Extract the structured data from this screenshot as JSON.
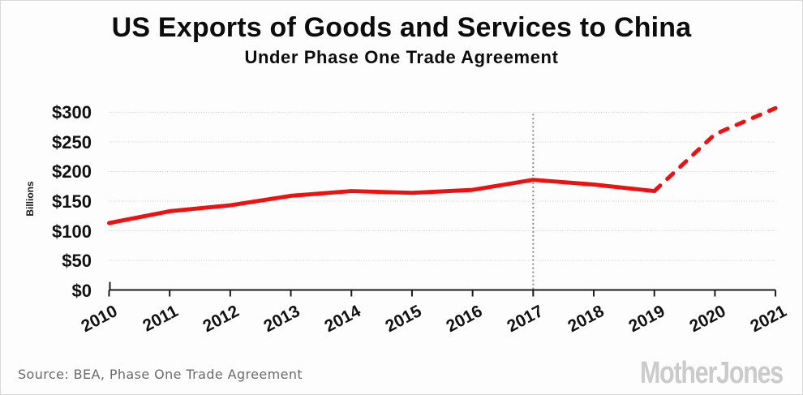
{
  "header": {
    "title": "US Exports of Goods and Services to China",
    "subtitle": "Under Phase One Trade Agreement"
  },
  "chart_data": {
    "type": "line",
    "title": "US Exports of Goods and Services to China",
    "subtitle": "Under Phase One Trade Agreement",
    "ylabel": "Billions",
    "ylim": [
      0,
      300
    ],
    "grid": "horizontal-dotted",
    "legend": "none",
    "x": [
      2010,
      2011,
      2012,
      2013,
      2014,
      2015,
      2016,
      2017,
      2018,
      2019,
      2020,
      2021
    ],
    "x_tick_labels": [
      "2010",
      "2011",
      "2012",
      "2013",
      "2014",
      "2015",
      "2016",
      "2017",
      "2018",
      "2019",
      "2020",
      "2021"
    ],
    "y_ticks": [
      {
        "label": "$300",
        "value": 300
      },
      {
        "label": "$250",
        "value": 250
      },
      {
        "label": "$200",
        "value": 200
      },
      {
        "label": "$150",
        "value": 150
      },
      {
        "label": "$100",
        "value": 100
      },
      {
        "label": "$50",
        "value": 50
      },
      {
        "label": "$0",
        "value": 0
      }
    ],
    "reference_line_x": 2017,
    "series": [
      {
        "name": "actual-exports",
        "dashed": false,
        "x": [
          2010,
          2011,
          2012,
          2013,
          2014,
          2015,
          2016,
          2017,
          2018,
          2019
        ],
        "values": [
          113,
          133,
          143,
          159,
          167,
          164,
          169,
          186,
          178,
          167
        ]
      },
      {
        "name": "phase-one-projection",
        "dashed": true,
        "x": [
          2019,
          2020,
          2021
        ],
        "values": [
          167,
          263,
          307
        ]
      }
    ],
    "colors": {
      "line": "#ee1111",
      "grid": "#cfcfcf",
      "axis": "#1a1a1a",
      "reference": "#8a8a8a"
    }
  },
  "footer": {
    "source": "Source:  BEA, Phase One Trade Agreement",
    "brand": "MotherJones"
  }
}
